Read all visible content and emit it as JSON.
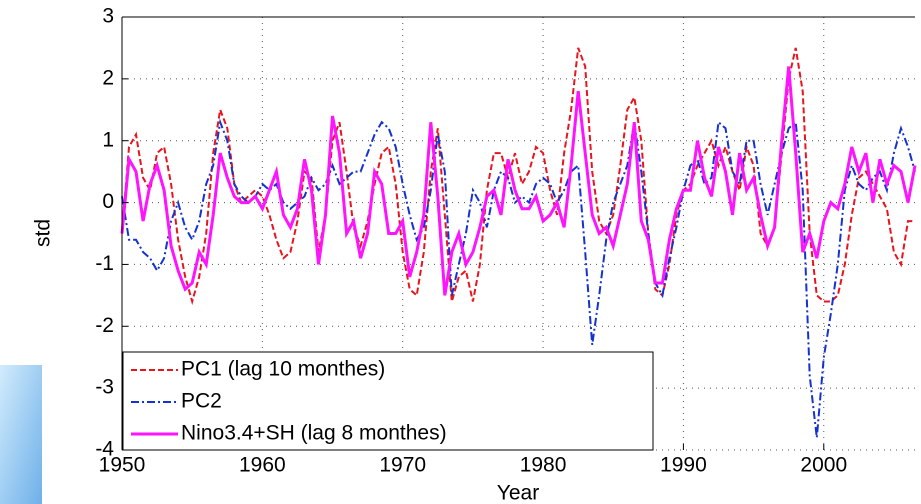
{
  "chart_data": {
    "type": "line",
    "xlabel": "Year",
    "ylabel": "std",
    "xlim": [
      1950,
      2006.5
    ],
    "ylim": [
      -4,
      3
    ],
    "xticks": [
      1950,
      1960,
      1970,
      1980,
      1990,
      2000
    ],
    "yticks": [
      -4,
      -3,
      -2,
      -1,
      0,
      1,
      2,
      3
    ],
    "grid": true,
    "legend": "lower left",
    "x": [
      1950,
      1950.5,
      1951,
      1951.5,
      1952,
      1952.5,
      1953,
      1953.5,
      1954,
      1954.5,
      1955,
      1955.5,
      1956,
      1956.5,
      1957,
      1957.5,
      1958,
      1958.5,
      1959,
      1959.5,
      1960,
      1960.5,
      1961,
      1961.5,
      1962,
      1962.5,
      1963,
      1963.5,
      1964,
      1964.5,
      1965,
      1965.5,
      1966,
      1966.5,
      1967,
      1967.5,
      1968,
      1968.5,
      1969,
      1969.5,
      1970,
      1970.5,
      1971,
      1971.5,
      1972,
      1972.5,
      1973,
      1973.5,
      1974,
      1974.5,
      1975,
      1975.5,
      1976,
      1976.5,
      1977,
      1977.5,
      1978,
      1978.5,
      1979,
      1979.5,
      1980,
      1980.5,
      1981,
      1981.5,
      1982,
      1982.5,
      1983,
      1983.5,
      1984,
      1984.5,
      1985,
      1985.5,
      1986,
      1986.5,
      1987,
      1987.5,
      1988,
      1988.5,
      1989,
      1989.5,
      1990,
      1990.5,
      1991,
      1991.5,
      1992,
      1992.5,
      1993,
      1993.5,
      1994,
      1994.5,
      1995,
      1995.5,
      1996,
      1996.5,
      1997,
      1997.5,
      1998,
      1998.5,
      1999,
      1999.5,
      2000,
      2000.5,
      2001,
      2001.5,
      2002,
      2002.5,
      2003,
      2003.5,
      2004,
      2004.5,
      2005,
      2005.5,
      2006,
      2006.5
    ],
    "series": [
      {
        "name": "PC1 (lag 10 monthes)",
        "color": "#e8141e",
        "dash": "dashed",
        "values": [
          -0.5,
          0.9,
          1.1,
          0.4,
          0.2,
          0.8,
          0.9,
          0.3,
          -0.6,
          -1.2,
          -1.6,
          -1.2,
          -0.5,
          0.8,
          1.5,
          1.2,
          0.3,
          0.0,
          0.1,
          0.2,
          0.1,
          -0.2,
          -0.6,
          -0.9,
          -0.8,
          -0.3,
          0.5,
          0.4,
          -0.8,
          -0.2,
          1.0,
          1.3,
          0.5,
          -0.4,
          -0.7,
          -0.3,
          0.3,
          0.8,
          0.9,
          0.3,
          -0.8,
          -1.4,
          -1.5,
          -0.8,
          0.5,
          1.2,
          -0.2,
          -1.6,
          -1.2,
          -1.1,
          -1.6,
          -1.0,
          0.2,
          0.8,
          0.8,
          0.4,
          0.8,
          0.3,
          0.5,
          0.9,
          0.8,
          0.2,
          -0.2,
          0.8,
          1.5,
          2.5,
          2.2,
          0.5,
          -0.3,
          -0.5,
          -0.2,
          0.6,
          1.5,
          1.7,
          1.0,
          -0.5,
          -1.4,
          -1.5,
          -1.0,
          -0.2,
          0.2,
          0.3,
          0.6,
          0.8,
          1.0,
          0.6,
          0.9,
          0.5,
          0.2,
          0.9,
          0.6,
          -0.5,
          -0.7,
          -0.4,
          0.8,
          2.0,
          2.5,
          1.8,
          -0.5,
          -1.5,
          -1.6,
          -1.6,
          -1.5,
          -1.0,
          -0.2,
          0.4,
          0.5,
          0.3,
          0.1,
          -0.1,
          -0.8,
          -1.0,
          -0.3,
          -0.3
        ]
      },
      {
        "name": "PC2",
        "color": "#1432d2",
        "dash": "dashdot",
        "values": [
          0.1,
          -0.6,
          -0.6,
          -0.8,
          -0.9,
          -1.1,
          -0.9,
          -0.3,
          0.0,
          -0.4,
          -0.6,
          -0.3,
          0.3,
          0.6,
          1.3,
          1.0,
          0.3,
          0.1,
          0.0,
          0.1,
          0.3,
          0.2,
          0.3,
          0.0,
          -0.1,
          0.0,
          0.1,
          0.4,
          0.2,
          0.3,
          0.6,
          0.3,
          0.4,
          0.5,
          0.5,
          0.8,
          1.1,
          1.3,
          1.2,
          0.9,
          0.3,
          -0.2,
          -0.6,
          -0.4,
          0.2,
          1.1,
          0.5,
          -1.5,
          -1.0,
          -0.5,
          0.2,
          0.0,
          -0.4,
          0.2,
          0.5,
          0.4,
          0.0,
          0.1,
          0.0,
          0.3,
          0.4,
          0.3,
          0.0,
          0.2,
          0.5,
          0.6,
          -0.8,
          -2.3,
          -1.5,
          -0.6,
          0.0,
          0.3,
          0.6,
          1.3,
          0.5,
          -0.5,
          -1.3,
          -1.5,
          -0.9,
          -0.4,
          0.2,
          0.6,
          0.7,
          0.3,
          0.4,
          1.3,
          1.2,
          0.5,
          0.3,
          1.0,
          1.0,
          0.3,
          -0.2,
          0.3,
          0.8,
          1.2,
          1.3,
          0.2,
          -2.8,
          -3.8,
          -2.5,
          -1.8,
          -1.0,
          0.2,
          0.6,
          0.3,
          0.2,
          0.4,
          0.5,
          0.2,
          0.8,
          1.2,
          0.9,
          0.5
        ]
      },
      {
        "name": "Nino3.4+SH (lag 8 monthes)",
        "color": "#ff14ff",
        "dash": "solid",
        "values": [
          -0.5,
          0.7,
          0.5,
          -0.3,
          0.3,
          0.6,
          0.2,
          -0.7,
          -1.1,
          -1.4,
          -1.3,
          -0.8,
          -1.0,
          -0.2,
          0.8,
          0.4,
          0.1,
          0.0,
          0.0,
          0.1,
          -0.1,
          0.2,
          0.5,
          -0.2,
          -0.4,
          -0.1,
          0.7,
          0.2,
          -1.0,
          -0.2,
          1.4,
          0.8,
          -0.5,
          -0.3,
          -0.9,
          -0.5,
          0.5,
          0.3,
          -0.5,
          -0.5,
          -0.3,
          -1.2,
          -0.8,
          -0.2,
          1.3,
          0.1,
          -1.5,
          -0.8,
          -0.5,
          -1.0,
          -0.8,
          -0.4,
          0.1,
          0.2,
          -0.2,
          0.7,
          0.2,
          -0.1,
          -0.1,
          0.1,
          -0.3,
          -0.2,
          0.0,
          -0.4,
          0.6,
          1.8,
          0.8,
          -0.2,
          -0.5,
          -0.4,
          -0.7,
          -0.2,
          0.3,
          1.3,
          -0.3,
          -0.6,
          -1.3,
          -1.3,
          -0.6,
          -0.1,
          0.2,
          0.2,
          1.0,
          0.4,
          0.1,
          0.9,
          0.5,
          -0.2,
          0.8,
          0.2,
          0.4,
          -0.2,
          -0.7,
          -0.4,
          1.0,
          2.2,
          0.8,
          -0.8,
          -0.5,
          -0.9,
          -0.3,
          0.0,
          -0.1,
          0.3,
          0.9,
          0.5,
          0.8,
          0.0,
          0.7,
          0.3,
          0.6,
          0.5,
          0.0,
          0.6
        ]
      }
    ]
  }
}
